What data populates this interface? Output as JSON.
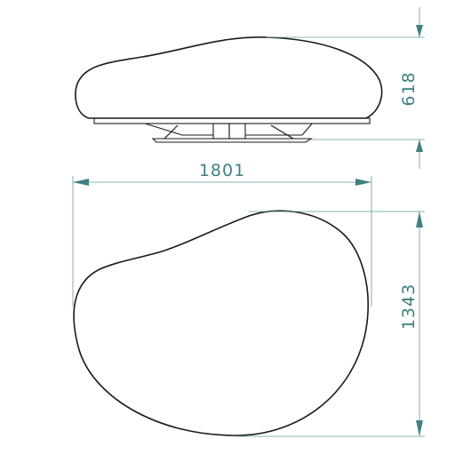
{
  "dimensions": {
    "height": "618",
    "width": "1801",
    "depth": "1343"
  },
  "colors": {
    "outline": "#1a1a1a",
    "dimension": "#5f9ea0",
    "dimension_text": "#3f7f82",
    "background": "#ffffff"
  }
}
